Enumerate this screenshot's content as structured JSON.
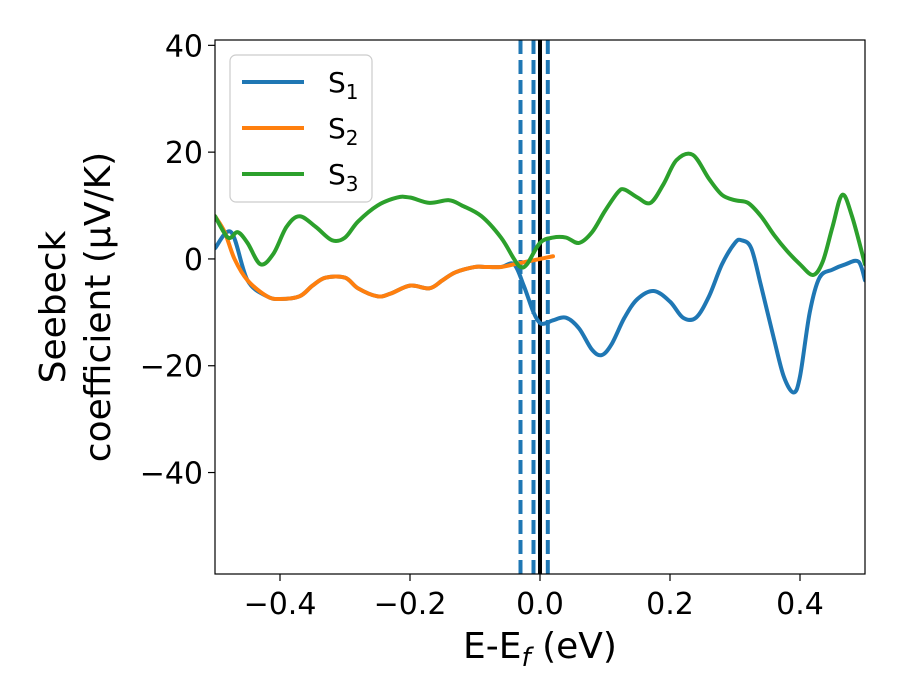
{
  "chart_data": {
    "type": "line",
    "xlabel_main": "E-E",
    "xlabel_sub": "f",
    "xlabel_unit": " (eV)",
    "ylabel_line1": "Seebeck",
    "ylabel_line2": "coefficient  (μV/K)",
    "xlim": [
      -0.5,
      0.5
    ],
    "ylim": [
      -59,
      41
    ],
    "xticks": [
      -0.4,
      -0.2,
      0.0,
      0.2,
      0.4
    ],
    "xtick_labels": [
      "−0.4",
      "−0.2",
      "0.0",
      "0.2",
      "0.4"
    ],
    "yticks": [
      40,
      20,
      0,
      -20,
      -40
    ],
    "ytick_labels": [
      "40",
      "20",
      "0",
      "−20",
      "−40"
    ],
    "grid": false,
    "legend_position": "top-left",
    "series": [
      {
        "name": "S",
        "sub": "1",
        "color": "#1f77b4",
        "x": [
          -0.5,
          -0.475,
          -0.45,
          -0.42,
          -0.4,
          -0.37,
          -0.35,
          -0.33,
          -0.3,
          -0.28,
          -0.25,
          -0.23,
          -0.2,
          -0.17,
          -0.15,
          -0.13,
          -0.1,
          -0.085,
          -0.06,
          -0.04,
          -0.025,
          -0.01,
          0.0,
          0.01,
          0.02,
          0.04,
          0.06,
          0.08,
          0.095,
          0.11,
          0.13,
          0.15,
          0.175,
          0.2,
          0.22,
          0.24,
          0.26,
          0.28,
          0.3,
          0.31,
          0.325,
          0.34,
          0.36,
          0.375,
          0.39,
          0.4,
          0.415,
          0.43,
          0.45,
          0.47,
          0.49,
          0.5
        ],
        "y": [
          2,
          5,
          -4,
          -7,
          -7.5,
          -7,
          -5,
          -3.5,
          -3.5,
          -5.5,
          -7,
          -6.5,
          -5,
          -5.5,
          -4,
          -2.5,
          -1.5,
          -1.5,
          -1.5,
          -1,
          -5,
          -10,
          -12,
          -12,
          -11.5,
          -11,
          -13,
          -17,
          -18,
          -16,
          -11,
          -7.5,
          -6,
          -8,
          -11,
          -11,
          -7,
          -1,
          3,
          3.5,
          2,
          -5,
          -15,
          -22,
          -25,
          -22,
          -10,
          -3.5,
          -2,
          -1,
          -0.5,
          -4
        ]
      },
      {
        "name": "S",
        "sub": "2",
        "color": "#ff7f0e",
        "x": [
          -0.5,
          -0.485,
          -0.47,
          -0.45,
          -0.42,
          -0.4,
          -0.37,
          -0.35,
          -0.33,
          -0.3,
          -0.28,
          -0.25,
          -0.23,
          -0.2,
          -0.17,
          -0.15,
          -0.13,
          -0.1,
          -0.085,
          -0.06,
          -0.04,
          -0.02,
          0.0,
          0.02
        ],
        "y": [
          8,
          5,
          0,
          -4,
          -7,
          -7.5,
          -7,
          -5,
          -3.5,
          -3.5,
          -5.5,
          -7,
          -6.5,
          -5,
          -5.5,
          -4,
          -2.5,
          -1.5,
          -1.5,
          -1.5,
          -1,
          -0.5,
          0,
          0.5
        ]
      },
      {
        "name": "S",
        "sub": "3",
        "color": "#2ca02c",
        "x": [
          -0.5,
          -0.48,
          -0.465,
          -0.45,
          -0.43,
          -0.41,
          -0.39,
          -0.37,
          -0.345,
          -0.32,
          -0.3,
          -0.28,
          -0.25,
          -0.22,
          -0.2,
          -0.17,
          -0.14,
          -0.12,
          -0.09,
          -0.06,
          -0.04,
          -0.03,
          -0.02,
          0.0,
          0.02,
          0.04,
          0.06,
          0.08,
          0.1,
          0.12,
          0.13,
          0.15,
          0.17,
          0.19,
          0.21,
          0.235,
          0.26,
          0.28,
          0.3,
          0.32,
          0.34,
          0.36,
          0.38,
          0.4,
          0.42,
          0.435,
          0.45,
          0.465,
          0.48,
          0.5
        ],
        "y": [
          8,
          4,
          5,
          3,
          -1,
          1,
          6,
          8,
          6,
          3.5,
          4,
          7,
          10,
          11.5,
          11.5,
          10.5,
          11,
          10,
          8,
          4,
          0,
          -1.5,
          -1,
          3,
          4,
          4,
          3,
          5,
          9,
          12.5,
          13,
          11.5,
          10.5,
          14,
          18.5,
          19.5,
          15,
          12,
          11,
          10.5,
          8,
          4.5,
          1.5,
          -1,
          -3,
          -0.5,
          6,
          12,
          8,
          -1
        ]
      }
    ],
    "vlines": [
      {
        "x": 0.0,
        "color": "#000000",
        "style": "solid"
      },
      {
        "x": -0.03,
        "color": "#1f77b4",
        "style": "dashed"
      },
      {
        "x": -0.01,
        "color": "#1f77b4",
        "style": "dashed"
      },
      {
        "x": 0.012,
        "color": "#1f77b4",
        "style": "dashed"
      }
    ]
  }
}
